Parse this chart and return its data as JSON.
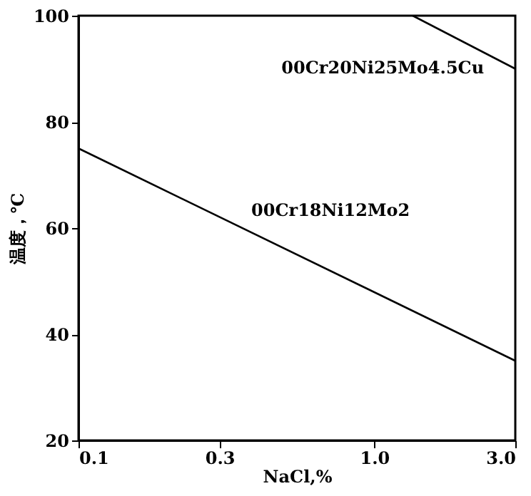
{
  "chart_data": {
    "type": "line",
    "xlabel": "NaCl,%",
    "ylabel": "温度，℃",
    "log": "x",
    "xlim": [
      0.1,
      3.0
    ],
    "xticks": [
      0.1,
      0.3,
      {
        "value": 1.0,
        "label": "1.0"
      },
      {
        "value": 3.0,
        "label": "3.0"
      }
    ],
    "ylim": [
      20,
      100
    ],
    "yticks": [
      20,
      40,
      60,
      80,
      100
    ],
    "grid": false,
    "marker": "none",
    "line_style": "solid",
    "series": [
      {
        "name": "00Cr20Ni25Mo4.5Cu",
        "color": "#000000",
        "x": [
          1.35,
          3.0
        ],
        "values": [
          100,
          90
        ]
      },
      {
        "name": "00Cr18Ni12Mo2",
        "color": "#000000",
        "x": [
          0.1,
          3.0
        ],
        "values": [
          75,
          35
        ]
      }
    ]
  }
}
